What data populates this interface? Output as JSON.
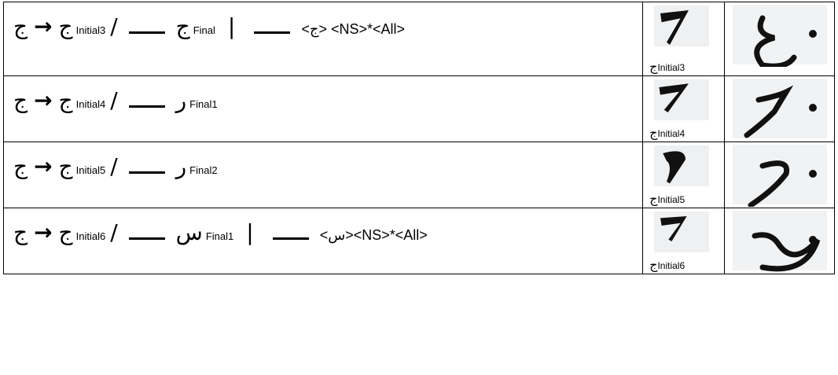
{
  "rows": [
    {
      "rule": {
        "source": "ج",
        "arrow": "→",
        "target": "ج",
        "target_sub": "Initial3",
        "slash": "/",
        "context": "ج",
        "context_sub": "Final",
        "separator": "|",
        "pattern": "<ج> <NS>*<All>"
      },
      "caption": {
        "letter": "ج",
        "sub": "Initial3"
      }
    },
    {
      "rule": {
        "source": "ج",
        "arrow": "→",
        "target": "ج",
        "target_sub": "Initial4",
        "slash": "/",
        "context": "ر",
        "context_sub": "Final1"
      },
      "caption": {
        "letter": "ج",
        "sub": "Initial4"
      }
    },
    {
      "rule": {
        "source": "ج",
        "arrow": "→",
        "target": "ج",
        "target_sub": "Initial5",
        "slash": "/",
        "context": "ر",
        "context_sub": "Final2"
      },
      "caption": {
        "letter": "ج",
        "sub": "Initial5"
      }
    },
    {
      "rule": {
        "source": "ج",
        "arrow": "→",
        "target": "ج",
        "target_sub": "Initial6",
        "slash": "/",
        "context": "س",
        "context_sub": "Final1",
        "separator": "|",
        "pattern": "<س><NS>*<All>"
      },
      "caption": {
        "letter": "ج",
        "sub": "Initial6"
      }
    }
  ]
}
